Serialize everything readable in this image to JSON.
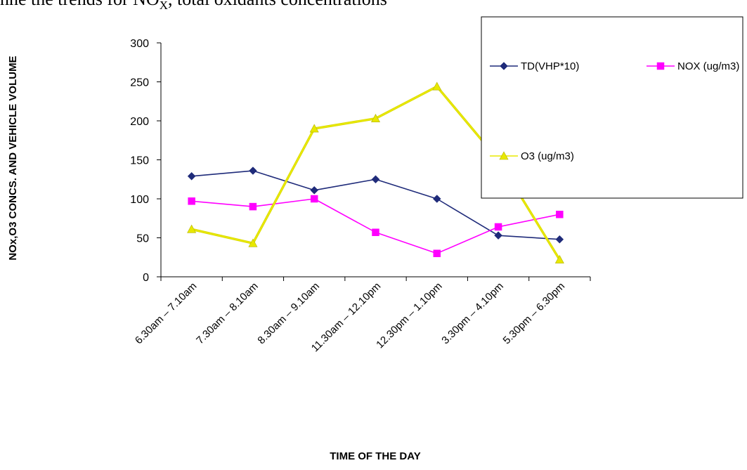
{
  "caption": {
    "prefix": "nne the trends for NO",
    "subscript": "X",
    "suffix": ", total oxidants concentrations"
  },
  "colors": {
    "TD(VHP*10)": "#1f2b7a",
    "NOX (ug/m3)": "#ff00ff",
    "O3 (ug/m3)": "#e8e800",
    "axis": "#000000",
    "legend_border": "#000000"
  },
  "chart_data": {
    "type": "line",
    "xlabel": "TIME OF THE DAY",
    "ylabel": "NOx,O3 CONCS. AND VEHICLE VOLUME",
    "ylim": [
      0,
      300
    ],
    "yticks": [
      0,
      50,
      100,
      150,
      200,
      250,
      300
    ],
    "grid": false,
    "legend_position": "top-right",
    "categories": [
      "6.30am – 7.10am",
      "7.30am – 8.10am",
      "8.30am – 9.10am",
      "11.30am – 12.10pm",
      "12.30pm – 1.10pm",
      "3.30pm – 4.10pm",
      "5.30pm – 6.30pm"
    ],
    "series": [
      {
        "name": "TD(VHP*10)",
        "marker": "diamond",
        "values": [
          129,
          136,
          111,
          125,
          100,
          53,
          48
        ]
      },
      {
        "name": "NOX (ug/m3)",
        "marker": "square",
        "values": [
          97,
          90,
          100,
          57,
          30,
          64,
          80
        ]
      },
      {
        "name": "O3 (ug/m3)",
        "marker": "triangle",
        "values": [
          61,
          43,
          190,
          203,
          244,
          150,
          22
        ]
      }
    ]
  }
}
